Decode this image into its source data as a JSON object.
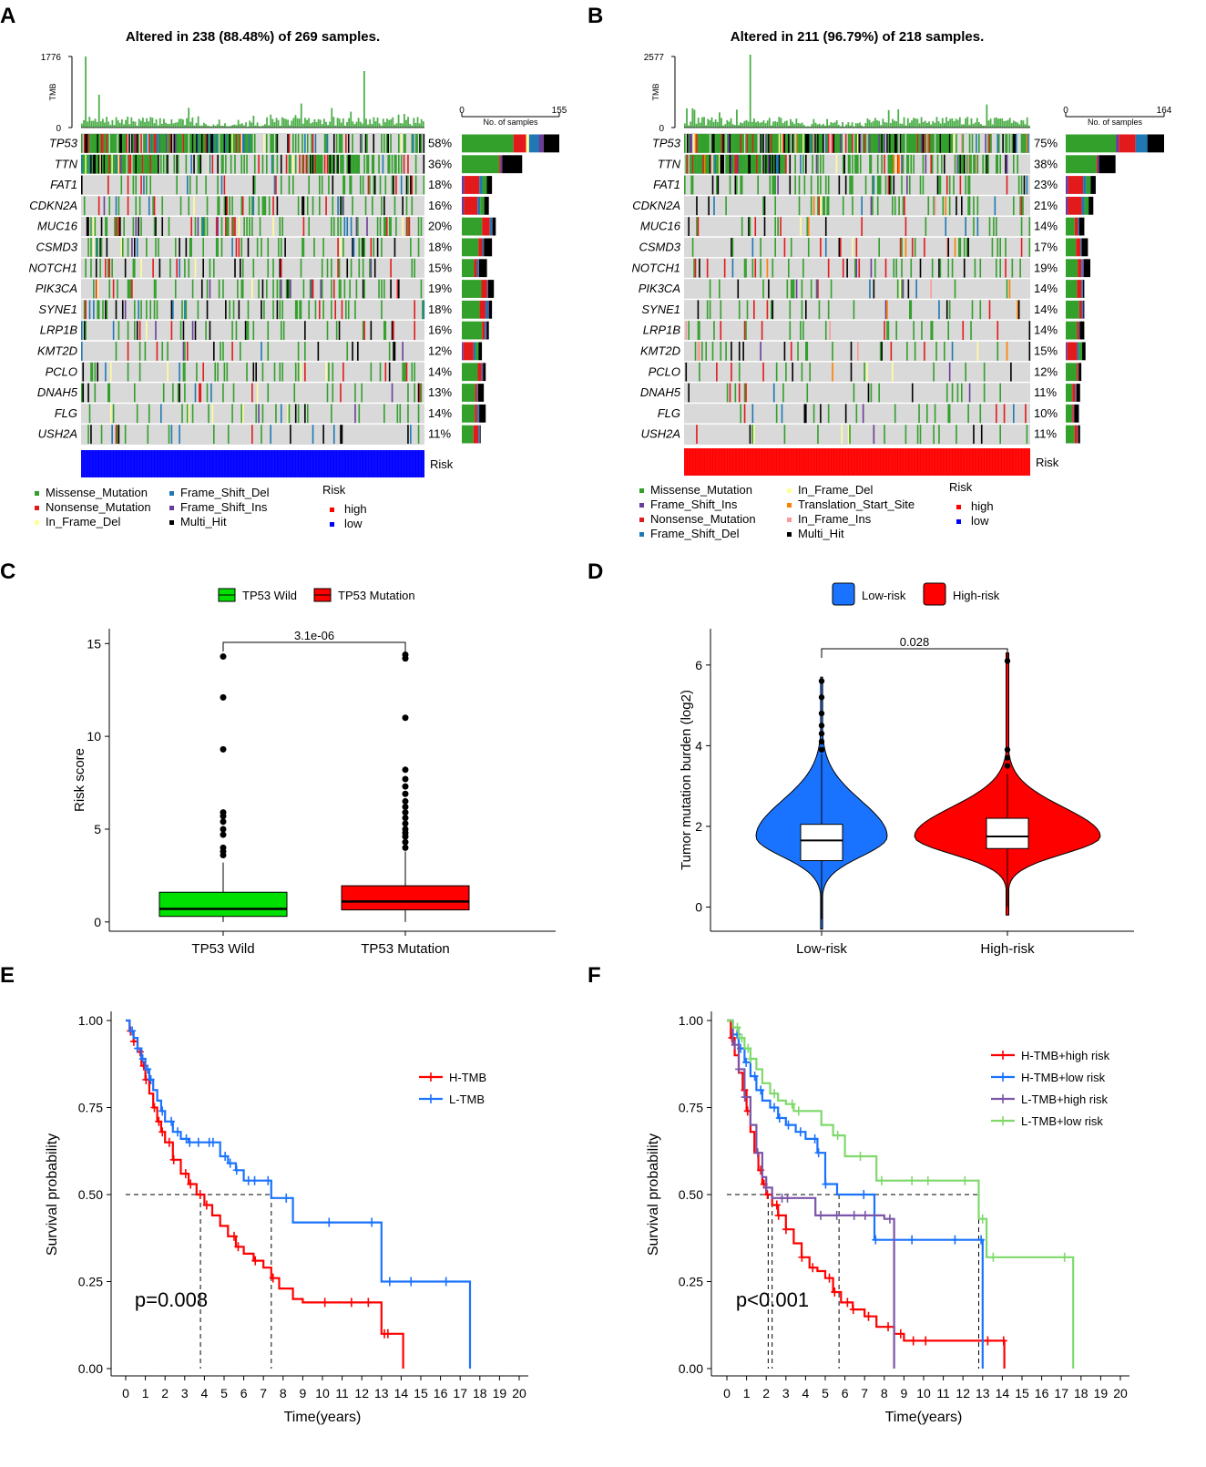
{
  "colors": {
    "missense": "#33a02c",
    "nonsense": "#e31a1c",
    "in_frame_del": "#ffff99",
    "frame_shift_del": "#1f78b4",
    "frame_shift_ins": "#6a3d9a",
    "multi_hit": "#000000",
    "translation_start_site": "#ff7f00",
    "in_frame_ins": "#fb9a99",
    "wild": "#00e000",
    "mutation": "#ff0000",
    "low_risk": "#1a73ff",
    "high_risk": "#ff0000",
    "risk_high": "#ff0000",
    "risk_low": "#0000ff",
    "tmb_bar": "#4daf4a",
    "matrix_bg": "#d9d9d9"
  },
  "chart_data": [
    {
      "panel": "A",
      "type": "oncoplot",
      "title": "Altered in 238 (88.48%) of 269 samples.",
      "tmb_axis": {
        "label": "TMB",
        "max": "1776",
        "min": "0"
      },
      "count_axis": {
        "label": "No. of samples",
        "min": "0",
        "max": "155",
        "max_value": 155
      },
      "genes": [
        "TP53",
        "TTN",
        "FAT1",
        "CDKN2A",
        "MUC16",
        "CSMD3",
        "NOTCH1",
        "PIK3CA",
        "SYNE1",
        "LRP1B",
        "KMT2D",
        "PCLO",
        "DNAH5",
        "FLG",
        "USH2A"
      ],
      "percents": [
        "58%",
        "36%",
        "18%",
        "16%",
        "20%",
        "18%",
        "15%",
        "19%",
        "18%",
        "16%",
        "12%",
        "14%",
        "13%",
        "14%",
        "11%"
      ],
      "counts": [
        155,
        96,
        48,
        43,
        54,
        48,
        40,
        51,
        48,
        43,
        32,
        38,
        35,
        38,
        30
      ],
      "risk_label": "Risk",
      "risk_group": "low",
      "legend": {
        "items": [
          "Missense_Mutation",
          "Nonsense_Mutation",
          "In_Frame_Del",
          "Frame_Shift_Del",
          "Frame_Shift_Ins",
          "Multi_Hit"
        ],
        "item_colors": [
          "missense",
          "nonsense",
          "in_frame_del",
          "frame_shift_del",
          "frame_shift_ins",
          "multi_hit"
        ],
        "risk_title": "Risk",
        "risk_items": [
          "high",
          "low"
        ]
      }
    },
    {
      "panel": "B",
      "type": "oncoplot",
      "title": "Altered in 211 (96.79%) of 218 samples.",
      "tmb_axis": {
        "label": "TMB",
        "max": "2577",
        "min": "0"
      },
      "count_axis": {
        "label": "No. of samples",
        "min": "0",
        "max": "164",
        "max_value": 164
      },
      "genes": [
        "TP53",
        "TTN",
        "FAT1",
        "CDKN2A",
        "MUC16",
        "CSMD3",
        "NOTCH1",
        "PIK3CA",
        "SYNE1",
        "LRP1B",
        "KMT2D",
        "PCLO",
        "DNAH5",
        "FLG",
        "USH2A"
      ],
      "percents": [
        "75%",
        "38%",
        "23%",
        "21%",
        "14%",
        "17%",
        "19%",
        "14%",
        "14%",
        "14%",
        "15%",
        "12%",
        "11%",
        "10%",
        "11%"
      ],
      "counts": [
        164,
        83,
        50,
        46,
        31,
        37,
        41,
        31,
        31,
        31,
        33,
        26,
        24,
        22,
        24
      ],
      "risk_label": "Risk",
      "risk_group": "high",
      "legend": {
        "items": [
          "Missense_Mutation",
          "Frame_Shift_Ins",
          "Nonsense_Mutation",
          "Frame_Shift_Del",
          "In_Frame_Del",
          "Translation_Start_Site",
          "In_Frame_Ins",
          "Multi_Hit"
        ],
        "item_colors": [
          "missense",
          "frame_shift_ins",
          "nonsense",
          "frame_shift_del",
          "in_frame_del",
          "translation_start_site",
          "in_frame_ins",
          "multi_hit"
        ],
        "risk_title": "Risk",
        "risk_items": [
          "high",
          "low"
        ]
      }
    },
    {
      "panel": "C",
      "type": "boxplot",
      "legend": [
        "TP53 Wild",
        "TP53 Mutation"
      ],
      "categories": [
        "TP53 Wild",
        "TP53 Mutation"
      ],
      "ylabel": "Risk score",
      "ylim": [
        -0.5,
        15.8
      ],
      "yticks": [
        0,
        5,
        10,
        15
      ],
      "p_value": "3.1e-06",
      "boxes": [
        {
          "name": "TP53 Wild",
          "q1": 0.3,
          "median": 0.7,
          "q3": 1.6,
          "whisker_low": 0.0,
          "whisker_high": 3.2,
          "outliers": [
            3.6,
            3.8,
            4.0,
            4.7,
            5.0,
            5.4,
            5.7,
            5.9,
            9.3,
            12.1,
            14.3
          ]
        },
        {
          "name": "TP53 Mutation",
          "q1": 0.65,
          "median": 1.1,
          "q3": 1.95,
          "whisker_low": 0.0,
          "whisker_high": 3.8,
          "outliers": [
            4.0,
            4.3,
            4.6,
            4.8,
            5.0,
            5.3,
            5.6,
            5.9,
            6.2,
            6.5,
            6.9,
            7.3,
            7.7,
            8.2,
            11.0,
            14.2,
            14.4
          ]
        }
      ]
    },
    {
      "panel": "D",
      "type": "violin",
      "legend": [
        "Low-risk",
        "High-risk"
      ],
      "categories": [
        "Low-risk",
        "High-risk"
      ],
      "ylabel": "Tumor mutation burden (log2)",
      "ylim": [
        -0.6,
        6.9
      ],
      "yticks": [
        0,
        2,
        4,
        6
      ],
      "p_value": "0.028",
      "groups": [
        {
          "name": "Low-risk",
          "min": -0.55,
          "max": 5.7,
          "q1": 1.15,
          "median": 1.65,
          "q3": 2.05,
          "whisker_low": -0.3,
          "whisker_high": 3.8,
          "outliers": [
            3.9,
            4.1,
            4.3,
            4.5,
            4.8,
            5.2,
            5.6
          ]
        },
        {
          "name": "High-risk",
          "min": -0.2,
          "max": 6.3,
          "q1": 1.45,
          "median": 1.75,
          "q3": 2.2,
          "whisker_low": 0.0,
          "whisker_high": 3.3,
          "outliers": [
            3.5,
            3.7,
            3.9,
            6.1
          ]
        }
      ]
    },
    {
      "panel": "E",
      "type": "line",
      "subtype": "kaplan-meier",
      "xlabel": "Time(years)",
      "ylabel": "Survival probability",
      "xlim": [
        0,
        20
      ],
      "ylim": [
        0,
        1
      ],
      "yticks": [
        "0.00",
        "0.25",
        "0.50",
        "0.75",
        "1.00"
      ],
      "xticks": [
        0,
        1,
        2,
        3,
        4,
        5,
        6,
        7,
        8,
        9,
        10,
        11,
        12,
        13,
        14,
        15,
        16,
        17,
        18,
        19,
        20
      ],
      "p_value": "p=0.008",
      "median_lines": [
        3.8,
        7.4
      ],
      "series": [
        {
          "name": "H-TMB",
          "color": "#ff0000",
          "x": [
            0,
            0.2,
            0.4,
            0.6,
            0.8,
            1.0,
            1.2,
            1.4,
            1.6,
            1.8,
            2.0,
            2.4,
            2.8,
            3.2,
            3.6,
            4.0,
            4.4,
            4.8,
            5.2,
            5.6,
            6.0,
            6.5,
            7.0,
            7.4,
            7.8,
            8.5,
            9.0,
            10.0,
            11.0,
            12.0,
            13.0,
            13.3,
            14.0,
            14.1
          ],
          "y": [
            1.0,
            0.97,
            0.94,
            0.91,
            0.87,
            0.83,
            0.79,
            0.75,
            0.71,
            0.68,
            0.65,
            0.6,
            0.56,
            0.53,
            0.5,
            0.47,
            0.44,
            0.41,
            0.38,
            0.35,
            0.33,
            0.31,
            0.29,
            0.26,
            0.23,
            0.2,
            0.19,
            0.19,
            0.19,
            0.19,
            0.1,
            0.1,
            0.1,
            0.0
          ]
        },
        {
          "name": "L-TMB",
          "color": "#1a73ff",
          "x": [
            0,
            0.2,
            0.4,
            0.6,
            0.8,
            1.0,
            1.2,
            1.4,
            1.6,
            1.8,
            2.0,
            2.4,
            2.8,
            3.2,
            3.6,
            4.0,
            4.4,
            4.8,
            5.2,
            5.6,
            6.0,
            6.5,
            7.0,
            7.4,
            8.0,
            8.5,
            10.0,
            12.0,
            13.0,
            14.0,
            16.0,
            17.5
          ],
          "y": [
            1.0,
            0.97,
            0.95,
            0.92,
            0.89,
            0.86,
            0.83,
            0.8,
            0.77,
            0.74,
            0.71,
            0.68,
            0.66,
            0.65,
            0.65,
            0.65,
            0.65,
            0.61,
            0.59,
            0.57,
            0.54,
            0.54,
            0.54,
            0.49,
            0.49,
            0.42,
            0.42,
            0.42,
            0.25,
            0.25,
            0.25,
            0.0
          ]
        }
      ]
    },
    {
      "panel": "F",
      "type": "line",
      "subtype": "kaplan-meier",
      "xlabel": "Time(years)",
      "ylabel": "Survival probability",
      "xlim": [
        0,
        20
      ],
      "ylim": [
        0,
        1
      ],
      "yticks": [
        "0.00",
        "0.25",
        "0.50",
        "0.75",
        "1.00"
      ],
      "xticks": [
        0,
        1,
        2,
        3,
        4,
        5,
        6,
        7,
        8,
        9,
        10,
        11,
        12,
        13,
        14,
        15,
        16,
        17,
        18,
        19,
        20
      ],
      "p_value": "p<0.001",
      "median_lines": [
        2.1,
        2.3,
        5.7,
        12.8
      ],
      "series": [
        {
          "name": "H-TMB+high risk",
          "color": "#ff0000",
          "x": [
            0,
            0.2,
            0.4,
            0.6,
            0.8,
            1.0,
            1.2,
            1.4,
            1.6,
            1.8,
            2.0,
            2.3,
            2.6,
            3.0,
            3.4,
            3.8,
            4.2,
            4.6,
            5.0,
            5.4,
            5.8,
            6.4,
            7.0,
            7.6,
            8.5,
            9.0,
            10.0,
            12.0,
            14.0,
            14.1
          ],
          "y": [
            1.0,
            0.95,
            0.9,
            0.85,
            0.8,
            0.74,
            0.68,
            0.62,
            0.57,
            0.53,
            0.5,
            0.47,
            0.44,
            0.4,
            0.36,
            0.32,
            0.29,
            0.28,
            0.26,
            0.22,
            0.19,
            0.17,
            0.15,
            0.12,
            0.1,
            0.08,
            0.08,
            0.08,
            0.08,
            0.0
          ]
        },
        {
          "name": "H-TMB+low risk",
          "color": "#1a73ff",
          "x": [
            0,
            0.3,
            0.6,
            0.9,
            1.2,
            1.5,
            1.8,
            2.2,
            2.6,
            3.0,
            3.5,
            4.0,
            4.6,
            5.0,
            5.6,
            6.0,
            7.5,
            8.0,
            10.0,
            12.0,
            12.9,
            13.0
          ],
          "y": [
            1.0,
            0.96,
            0.92,
            0.88,
            0.84,
            0.8,
            0.77,
            0.75,
            0.72,
            0.7,
            0.68,
            0.66,
            0.62,
            0.53,
            0.5,
            0.5,
            0.37,
            0.37,
            0.37,
            0.37,
            0.37,
            0.0
          ]
        },
        {
          "name": "L-TMB+high risk",
          "color": "#7b55a8",
          "x": [
            0,
            0.3,
            0.6,
            0.9,
            1.2,
            1.5,
            1.8,
            2.0,
            2.3,
            3.0,
            4.0,
            4.5,
            5.0,
            6.0,
            7.0,
            8.0,
            8.4,
            8.5
          ],
          "y": [
            1.0,
            0.93,
            0.86,
            0.78,
            0.7,
            0.62,
            0.55,
            0.52,
            0.49,
            0.49,
            0.49,
            0.44,
            0.44,
            0.44,
            0.44,
            0.43,
            0.43,
            0.0
          ]
        },
        {
          "name": "L-TMB+low risk",
          "color": "#7fd96b",
          "x": [
            0,
            0.3,
            0.6,
            0.9,
            1.2,
            1.5,
            1.8,
            2.2,
            2.6,
            3.0,
            3.4,
            4.0,
            4.8,
            5.4,
            6.0,
            7.0,
            7.6,
            8.0,
            10.0,
            12.0,
            12.8,
            13.2,
            17.0,
            17.6
          ],
          "y": [
            1.0,
            0.98,
            0.95,
            0.92,
            0.89,
            0.86,
            0.82,
            0.79,
            0.77,
            0.76,
            0.74,
            0.74,
            0.7,
            0.67,
            0.61,
            0.61,
            0.54,
            0.54,
            0.54,
            0.54,
            0.43,
            0.32,
            0.32,
            0.0
          ]
        }
      ]
    }
  ]
}
